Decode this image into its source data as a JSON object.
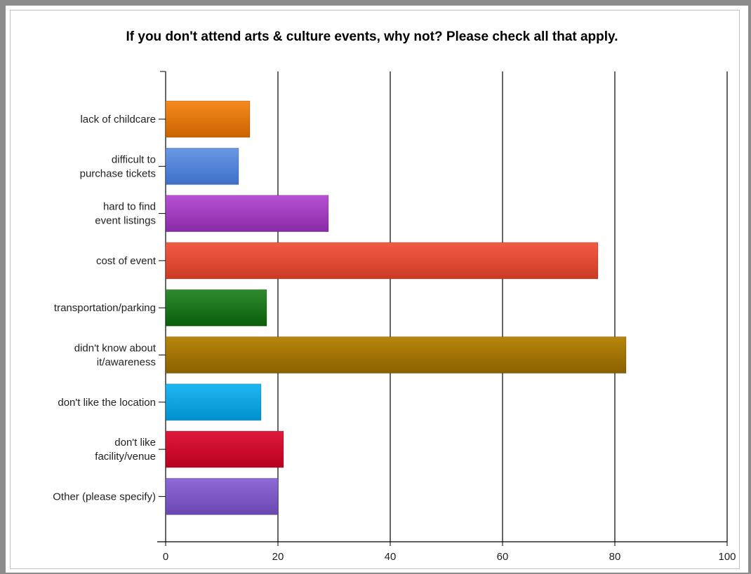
{
  "chart_data": {
    "type": "bar",
    "orientation": "horizontal",
    "title": "If you don't attend arts & culture events, why not? Please check all that apply.",
    "xlabel": "",
    "ylabel": "",
    "xlim": [
      0,
      100
    ],
    "x_ticks": [
      "0",
      "20",
      "40",
      "60",
      "80",
      "100"
    ],
    "grid": true,
    "categories": [
      [
        "lack of childcare"
      ],
      [
        "difficult to",
        "purchase tickets"
      ],
      [
        "hard to find",
        "event listings"
      ],
      [
        "cost of event"
      ],
      [
        "transportation/parking"
      ],
      [
        "didn't know about",
        "it/awareness"
      ],
      [
        "don't like the location"
      ],
      [
        "don't like",
        "facility/venue"
      ],
      [
        "Other (please specify)"
      ]
    ],
    "values": [
      15,
      13,
      29,
      77,
      18,
      82,
      17,
      21,
      20
    ],
    "colors": [
      [
        "#f58a1f",
        "#c96400"
      ],
      [
        "#6a98e6",
        "#3f70c8"
      ],
      [
        "#b750d4",
        "#8a2aa8"
      ],
      [
        "#f25c45",
        "#cc3a25"
      ],
      [
        "#2e8b2e",
        "#0a5e0a"
      ],
      [
        "#b8860b",
        "#8a6000"
      ],
      [
        "#1fb7f2",
        "#0090cf"
      ],
      [
        "#e01a3c",
        "#b8001e"
      ],
      [
        "#8e6ad6",
        "#6a48b4"
      ]
    ]
  }
}
